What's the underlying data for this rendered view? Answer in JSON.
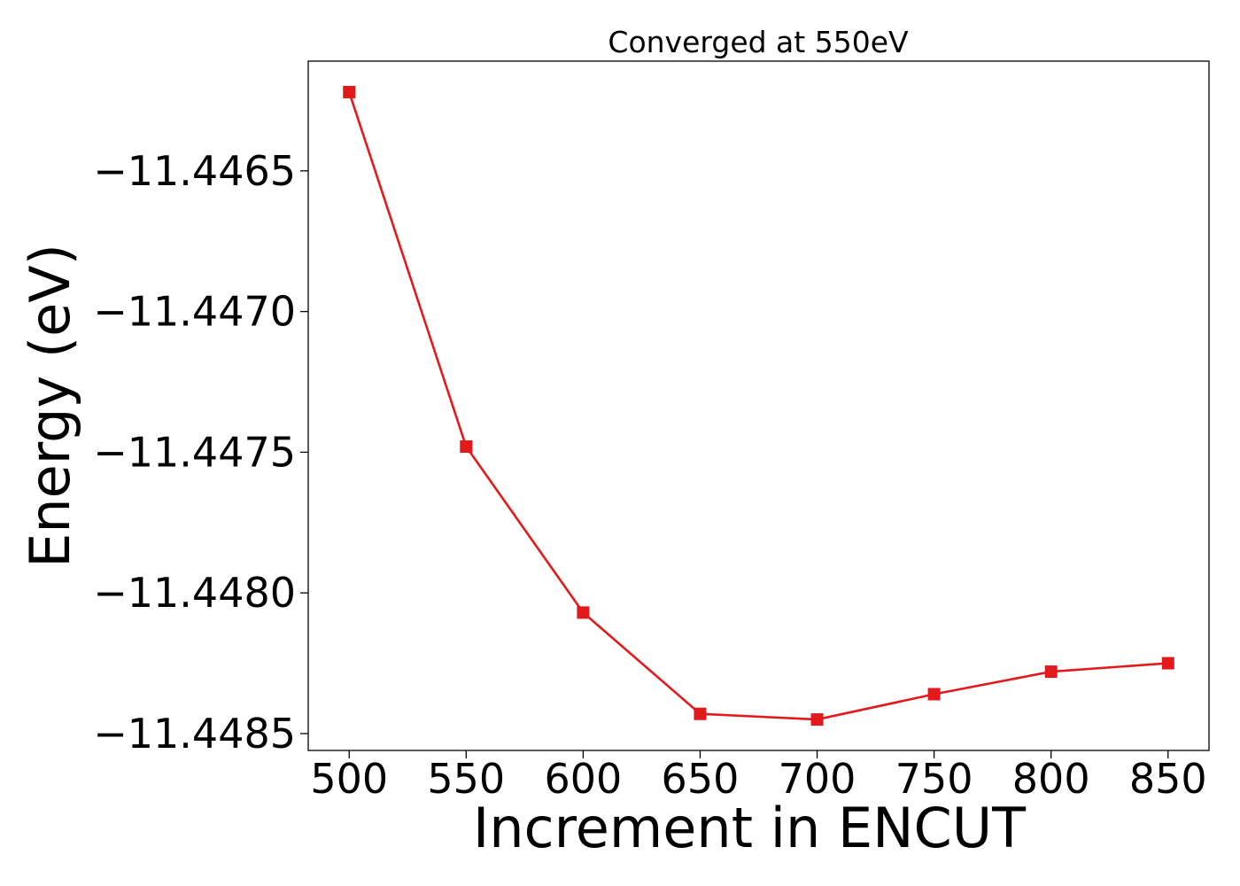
{
  "chart_data": {
    "type": "line",
    "title": "Converged at 550eV",
    "xlabel": "Increment in ENCUT",
    "ylabel": "Energy (eV)",
    "x": [
      500,
      550,
      600,
      650,
      700,
      750,
      800,
      850
    ],
    "series": [
      {
        "values": [
          -11.44622,
          -11.44748,
          -11.44807,
          -11.44843,
          -11.44845,
          -11.44836,
          -11.44828,
          -11.44825
        ],
        "color": "#e31a1c",
        "marker": "square"
      }
    ],
    "xticks": [
      500,
      550,
      600,
      650,
      700,
      750,
      800,
      850
    ],
    "xtick_labels": [
      "500",
      "550",
      "600",
      "650",
      "700",
      "750",
      "800",
      "850"
    ],
    "yticks": [
      -11.4465,
      -11.447,
      -11.4475,
      -11.448,
      -11.4485
    ],
    "ytick_labels": [
      "−11.4465",
      "−11.4470",
      "−11.4475",
      "−11.4480",
      "−11.4485"
    ],
    "xlim": [
      482.5,
      867.5
    ],
    "ylim": [
      -11.44856,
      -11.44611
    ],
    "grid": false,
    "legend": false
  }
}
